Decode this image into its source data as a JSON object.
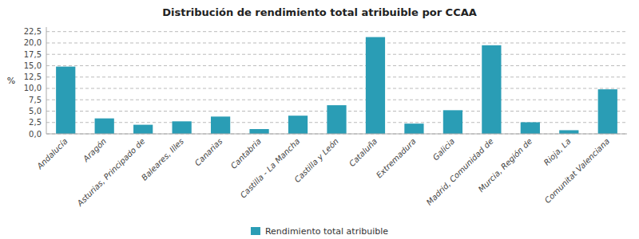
{
  "chart_data": {
    "type": "bar",
    "title": "Distribución de rendimiento total atribuible por CCAA",
    "ylabel": "%",
    "categories": [
      "Andalucía",
      "Aragón",
      "Asturias, Principado de",
      "Baleares, Illes",
      "Canarias",
      "Cantabria",
      "Castilla - La Mancha",
      "Castilla y León",
      "Cataluña",
      "Extremadura",
      "Galicia",
      "Madrid, Comunidad de",
      "Murcia, Región de",
      "Rioja, La",
      "Comunitat Valenciana"
    ],
    "series": [
      {
        "name": "Rendimiento total atribuible",
        "color": "#2a9db5",
        "values": [
          14.8,
          3.4,
          2.0,
          2.75,
          3.8,
          1.05,
          4.0,
          6.3,
          21.3,
          2.25,
          5.2,
          19.5,
          2.55,
          0.8,
          9.8
        ]
      }
    ],
    "ylim": [
      0,
      23.5
    ],
    "yticks": [
      {
        "value": 0.0,
        "label": "0,0"
      },
      {
        "value": 2.5,
        "label": "2,5"
      },
      {
        "value": 5.0,
        "label": "5,0"
      },
      {
        "value": 7.5,
        "label": "7,5"
      },
      {
        "value": 10.0,
        "label": "10,0"
      },
      {
        "value": 12.5,
        "label": "12,5"
      },
      {
        "value": 15.0,
        "label": "15,0"
      },
      {
        "value": 17.5,
        "label": "17,5"
      },
      {
        "value": 20.0,
        "label": "20,0"
      },
      {
        "value": 22.5,
        "label": "22,5"
      }
    ],
    "grid": true,
    "legend": "bottom"
  }
}
